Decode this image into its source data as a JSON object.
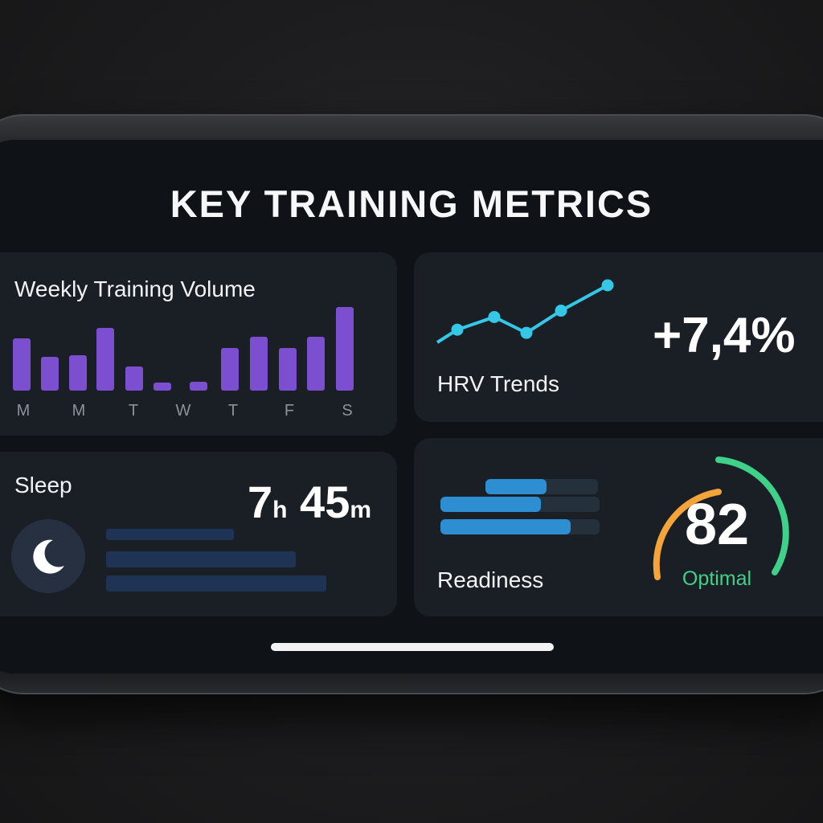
{
  "title": "KEY TRAINING METRICS",
  "weekly_volume": {
    "label": "Weekly Training Volume",
    "day_labels": [
      "M",
      "M",
      "T",
      "W",
      "T",
      "F",
      "S"
    ],
    "chart_data": {
      "type": "bar",
      "title": "Weekly Training Volume",
      "values": [
        65,
        42,
        44,
        78,
        30,
        10,
        11,
        53,
        67,
        53,
        67,
        104
      ],
      "color": "#7c4fd0"
    }
  },
  "hrv": {
    "label": "HRV Trends",
    "value": "+7,4%",
    "chart_data": {
      "type": "line",
      "values": [
        0,
        2,
        4,
        1.5,
        5,
        9
      ],
      "color": "#35c7e6"
    }
  },
  "sleep": {
    "label": "Sleep",
    "hours": "7",
    "hours_unit": "h",
    "minutes": "45",
    "minutes_unit": "m",
    "icon": "moon-icon",
    "bar_levels": [
      0.58,
      0.86,
      1.0
    ],
    "bar_color": "#1f3354"
  },
  "readiness": {
    "label": "Readiness",
    "score": "82",
    "status": "Optimal",
    "bar_levels": [
      0.54,
      0.63,
      0.82
    ],
    "gauge_colors": [
      "#f5a43a",
      "#3fd08a"
    ],
    "status_color": "#3fd08a"
  }
}
